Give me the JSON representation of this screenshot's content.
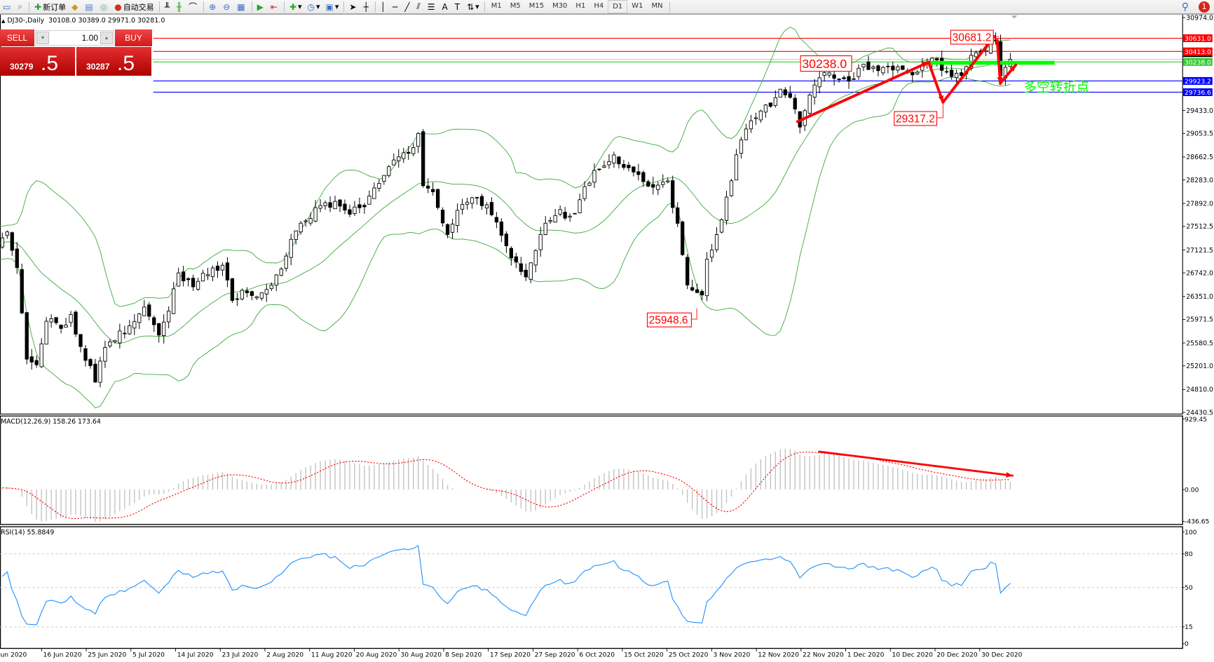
{
  "toolbar": {
    "new_order": "新订单",
    "auto_trading": "自动交易",
    "timeframes": [
      "M1",
      "M5",
      "M15",
      "M30",
      "H1",
      "H4",
      "D1",
      "W1",
      "MN"
    ],
    "active_timeframe": "D1",
    "notifications": "1"
  },
  "chart_header": {
    "symbol": "DJ30-,Daily",
    "ohlc": "30108.0 30389.0 29971.0 30281.0"
  },
  "trade_panel": {
    "sell_label": "SELL",
    "buy_label": "BUY",
    "lot": "1.00",
    "sell_price_main": "30279",
    "sell_price_frac": ".5",
    "buy_price_main": "30287",
    "buy_price_frac": ".5"
  },
  "price_axis": {
    "ticks": [
      "30974.0",
      "29433.0",
      "29053.5",
      "28662.5",
      "28283.0",
      "27892.0",
      "27512.5",
      "27121.5",
      "26742.0",
      "26351.0",
      "25971.5",
      "25580.5",
      "25201.0",
      "24810.0",
      "24430.5"
    ],
    "levels": [
      {
        "value": "30631.0",
        "color": "#ff0000"
      },
      {
        "value": "30413.0",
        "color": "#ff0000"
      },
      {
        "value": "30238.0",
        "color": "#33cc33"
      },
      {
        "value": "29923.2",
        "color": "#0000ff"
      },
      {
        "value": "29736.6",
        "color": "#0000ff"
      }
    ],
    "range": [
      24430.5,
      30974.0
    ]
  },
  "macd": {
    "label": "MACD(12,26,9) 158.26 173.64",
    "ticks": [
      "929.45",
      "0.00",
      "-436.65"
    ],
    "range": [
      -436.65,
      929.45
    ]
  },
  "rsi": {
    "label": "RSI(14) 55.8849",
    "ticks": [
      "100",
      "80",
      "50",
      "15",
      "0"
    ]
  },
  "date_axis": [
    "Jun 2020",
    "16 Jun 2020",
    "25 Jun 2020",
    "5 Jul 2020",
    "14 Jul 2020",
    "23 Jul 2020",
    "2 Aug 2020",
    "11 Aug 2020",
    "20 Aug 2020",
    "30 Aug 2020",
    "8 Sep 2020",
    "17 Sep 2020",
    "27 Sep 2020",
    "6 Oct 2020",
    "15 Oct 2020",
    "25 Oct 2020",
    "3 Nov 2020",
    "12 Nov 2020",
    "22 Nov 2020",
    "1 Dec 2020",
    "10 Dec 2020",
    "20 Dec 2020",
    "30 Dec 2020"
  ],
  "annotations": {
    "labels": [
      "30238.0",
      "29317.2",
      "30681.2",
      "25948.6"
    ],
    "note": "多空转折点",
    "color": "#ff0000",
    "note_color": "#00ff00"
  },
  "chart_data": {
    "type": "candlestick",
    "symbol": "DJ30-",
    "timeframe": "Daily",
    "ylim": [
      24430.5,
      30974.0
    ],
    "close_waypoints": [
      [
        1,
        27413
      ],
      [
        3,
        26771
      ],
      [
        5,
        25359
      ],
      [
        7,
        25231
      ],
      [
        9,
        26001
      ],
      [
        12,
        25873
      ],
      [
        14,
        26001
      ],
      [
        17,
        25359
      ],
      [
        19,
        24974
      ],
      [
        21,
        25488
      ],
      [
        24,
        25744
      ],
      [
        27,
        25873
      ],
      [
        29,
        26129
      ],
      [
        32,
        25744
      ],
      [
        34,
        26129
      ],
      [
        36,
        26707
      ],
      [
        39,
        26579
      ],
      [
        41,
        26707
      ],
      [
        45,
        26836
      ],
      [
        47,
        26322
      ],
      [
        50,
        26450
      ],
      [
        52,
        26322
      ],
      [
        54,
        26450
      ],
      [
        57,
        26771
      ],
      [
        59,
        27285
      ],
      [
        62,
        27606
      ],
      [
        65,
        27862
      ],
      [
        68,
        27862
      ],
      [
        71,
        27734
      ],
      [
        74,
        27862
      ],
      [
        77,
        28247
      ],
      [
        80,
        28568
      ],
      [
        84,
        28761
      ],
      [
        85,
        29082
      ],
      [
        86,
        28183
      ],
      [
        88,
        28055
      ],
      [
        91,
        27413
      ],
      [
        93,
        27798
      ],
      [
        96,
        27991
      ],
      [
        99,
        27862
      ],
      [
        101,
        27542
      ],
      [
        104,
        27028
      ],
      [
        107,
        26643
      ],
      [
        109,
        27157
      ],
      [
        111,
        27542
      ],
      [
        114,
        27734
      ],
      [
        117,
        27670
      ],
      [
        119,
        28119
      ],
      [
        122,
        28504
      ],
      [
        125,
        28696
      ],
      [
        127,
        28440
      ],
      [
        130,
        28376
      ],
      [
        133,
        28183
      ],
      [
        136,
        28247
      ],
      [
        138,
        27542
      ],
      [
        140,
        26514
      ],
      [
        143,
        26322
      ],
      [
        144,
        26900
      ],
      [
        147,
        27670
      ],
      [
        149,
        28311
      ],
      [
        151,
        28954
      ],
      [
        154,
        29339
      ],
      [
        156,
        29467
      ],
      [
        159,
        29724
      ],
      [
        161,
        29596
      ],
      [
        163,
        29211
      ],
      [
        165,
        29660
      ],
      [
        167,
        30045
      ],
      [
        170,
        29981
      ],
      [
        174,
        29981
      ],
      [
        176,
        30173
      ],
      [
        179,
        30109
      ],
      [
        181,
        30173
      ],
      [
        185,
        30045
      ],
      [
        188,
        30173
      ],
      [
        190,
        30302
      ],
      [
        193,
        30045
      ],
      [
        196,
        30045
      ],
      [
        198,
        30366
      ],
      [
        200,
        30430
      ],
      [
        203,
        30623
      ],
      [
        204,
        30045
      ],
      [
        206,
        30281
      ]
    ]
  }
}
